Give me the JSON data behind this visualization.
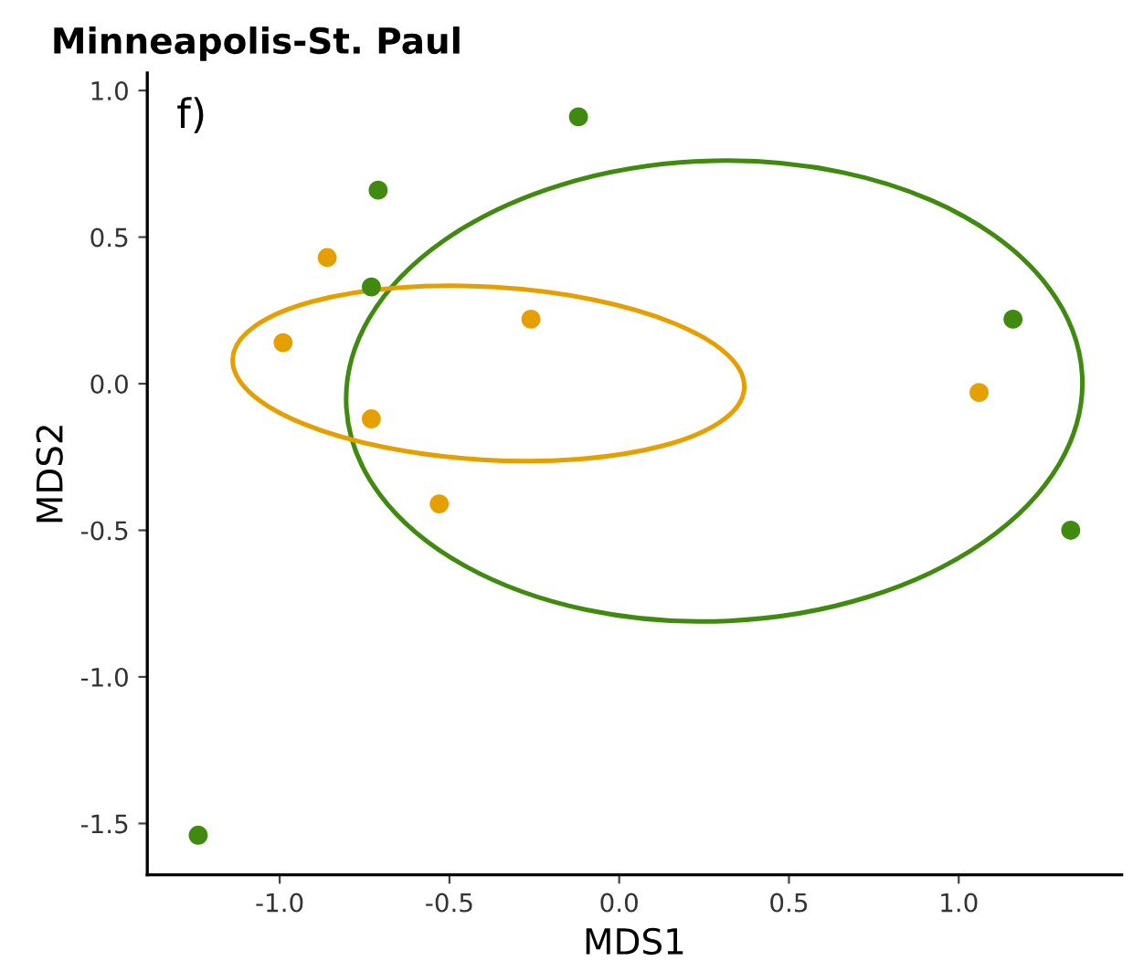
{
  "chart_data": {
    "type": "scatter",
    "title": "Minneapolis-St. Paul",
    "xlabel": "MDS1",
    "ylabel": "MDS2",
    "annotations": [
      "f)"
    ],
    "xlim": [
      -1.39,
      1.48
    ],
    "ylim": [
      -1.675,
      1.06
    ],
    "xticks": [
      {
        "value": -1,
        "label": "-1.0"
      },
      -0.5,
      {
        "value": 0,
        "label": "0.0"
      },
      0.5,
      {
        "value": 1,
        "label": "1.0"
      }
    ],
    "yticks": [
      -1.5,
      {
        "value": -1,
        "label": "-1.0"
      },
      -0.5,
      {
        "value": 0,
        "label": "0.0"
      },
      0.5,
      {
        "value": 1,
        "label": "1.0"
      }
    ],
    "grid": false,
    "marker": "circle",
    "series": [
      {
        "color": "#3f8a0f",
        "x": [
          -1.24,
          -0.71,
          -0.12,
          -0.73,
          1.16,
          1.33
        ],
        "values": [
          -1.54,
          0.66,
          0.91,
          0.33,
          0.22,
          -0.5
        ]
      },
      {
        "color": "#e69f00",
        "x": [
          -0.86,
          -0.99,
          -0.73,
          -0.26,
          -0.53,
          1.06
        ],
        "values": [
          0.43,
          0.14,
          -0.12,
          0.22,
          -0.41,
          -0.03
        ]
      }
    ]
  }
}
